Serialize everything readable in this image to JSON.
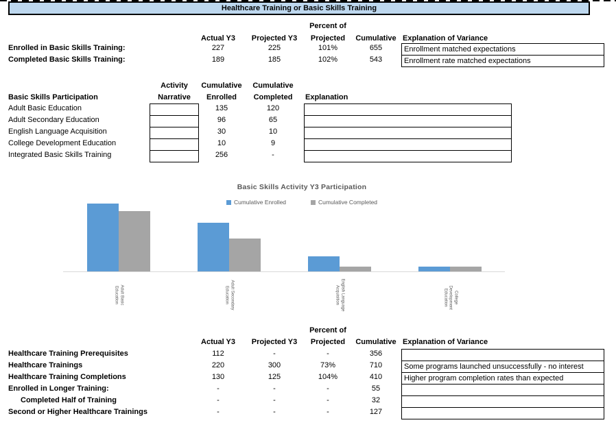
{
  "banner": {
    "title": "Healthcare Training or Basic Skills Training",
    "bg_color": "#BDD7EE"
  },
  "colors": {
    "accent_blue": "#5B9BD5",
    "accent_gray": "#A5A5A5",
    "muted_text": "#595959",
    "axis_line": "#D9D9D9"
  },
  "table1": {
    "headers": {
      "percent_line1": "Percent of",
      "actual": "Actual Y3",
      "projected": "Projected Y3",
      "percent_line2": "Projected",
      "cumulative": "Cumulative",
      "explanation": "Explanation of Variance"
    },
    "rows": [
      {
        "label": "Enrolled in Basic Skills Training:",
        "actual": "227",
        "projected": "225",
        "percent": "101%",
        "cumulative": "655",
        "explanation": "Enrollment matched expectations"
      },
      {
        "label": "Completed Basic Skills Training:",
        "actual": "189",
        "projected": "185",
        "percent": "102%",
        "cumulative": "543",
        "explanation": "Enrollment rate matched expectations"
      }
    ]
  },
  "table2": {
    "title": "Basic Skills Participation",
    "headers": {
      "narrative_line1": "Activity",
      "narrative_line2": "Narrative",
      "enrolled_line1": "Cumulative",
      "enrolled_line2": "Enrolled",
      "completed_line1": "Cumulative",
      "completed_line2": "Completed",
      "explanation": "Explanation"
    },
    "rows": [
      {
        "label": "Adult Basic Education",
        "narrative": "",
        "enrolled": "135",
        "completed": "120",
        "explanation": ""
      },
      {
        "label": "Adult Secondary Education",
        "narrative": "",
        "enrolled": "96",
        "completed": "65",
        "explanation": ""
      },
      {
        "label": "English Language Acquisition",
        "narrative": "",
        "enrolled": "30",
        "completed": "10",
        "explanation": ""
      },
      {
        "label": "College Development Education",
        "narrative": "",
        "enrolled": "10",
        "completed": "9",
        "explanation": ""
      },
      {
        "label": "Integrated Basic Skills Training",
        "narrative": "",
        "enrolled": "256",
        "completed": "-",
        "explanation": ""
      }
    ]
  },
  "chart_data": {
    "type": "bar",
    "title": "Basic Skills Activity Y3 Participation",
    "categories": [
      "Adult Basic Education",
      "Adult Secondary Education",
      "English Language Acquisition",
      "College Development Education"
    ],
    "series": [
      {
        "name": "Cumulative Enrolled",
        "color": "#5B9BD5",
        "values": [
          135,
          96,
          30,
          10
        ]
      },
      {
        "name": "Cumulative Completed",
        "color": "#A5A5A5",
        "values": [
          120,
          65,
          10,
          9
        ]
      }
    ],
    "ylim": [
      0,
      140
    ],
    "legend_position": "top",
    "grid": false,
    "y_axis_labels_visible": false,
    "x_axis_label_rotation_deg": 90
  },
  "table3": {
    "headers": {
      "percent_line1": "Percent of",
      "actual": "Actual Y3",
      "projected": "Projected Y3",
      "percent_line2": "Projected",
      "cumulative": "Cumulative",
      "explanation": "Explanation of Variance"
    },
    "rows": [
      {
        "label": "Healthcare Training Prerequisites",
        "actual": "112",
        "projected": "-",
        "percent": "-",
        "cumulative": "356",
        "explanation": ""
      },
      {
        "label": "Healthcare Trainings",
        "actual": "220",
        "projected": "300",
        "percent": "73%",
        "cumulative": "710",
        "explanation": "Some programs launched unsuccessfully - no interest"
      },
      {
        "label": "Healthcare Training Completions",
        "actual": "130",
        "projected": "125",
        "percent": "104%",
        "cumulative": "410",
        "explanation": "Higher program completion rates than expected"
      },
      {
        "label": "Enrolled in Longer Training:",
        "actual": "-",
        "projected": "-",
        "percent": "-",
        "cumulative": "55",
        "explanation": ""
      },
      {
        "label": "Completed Half of Training",
        "indent": true,
        "actual": "-",
        "projected": "-",
        "percent": "-",
        "cumulative": "32",
        "explanation": ""
      },
      {
        "label": "Second or Higher Healthcare Trainings",
        "actual": "-",
        "projected": "-",
        "percent": "-",
        "cumulative": "127",
        "explanation": ""
      }
    ]
  }
}
